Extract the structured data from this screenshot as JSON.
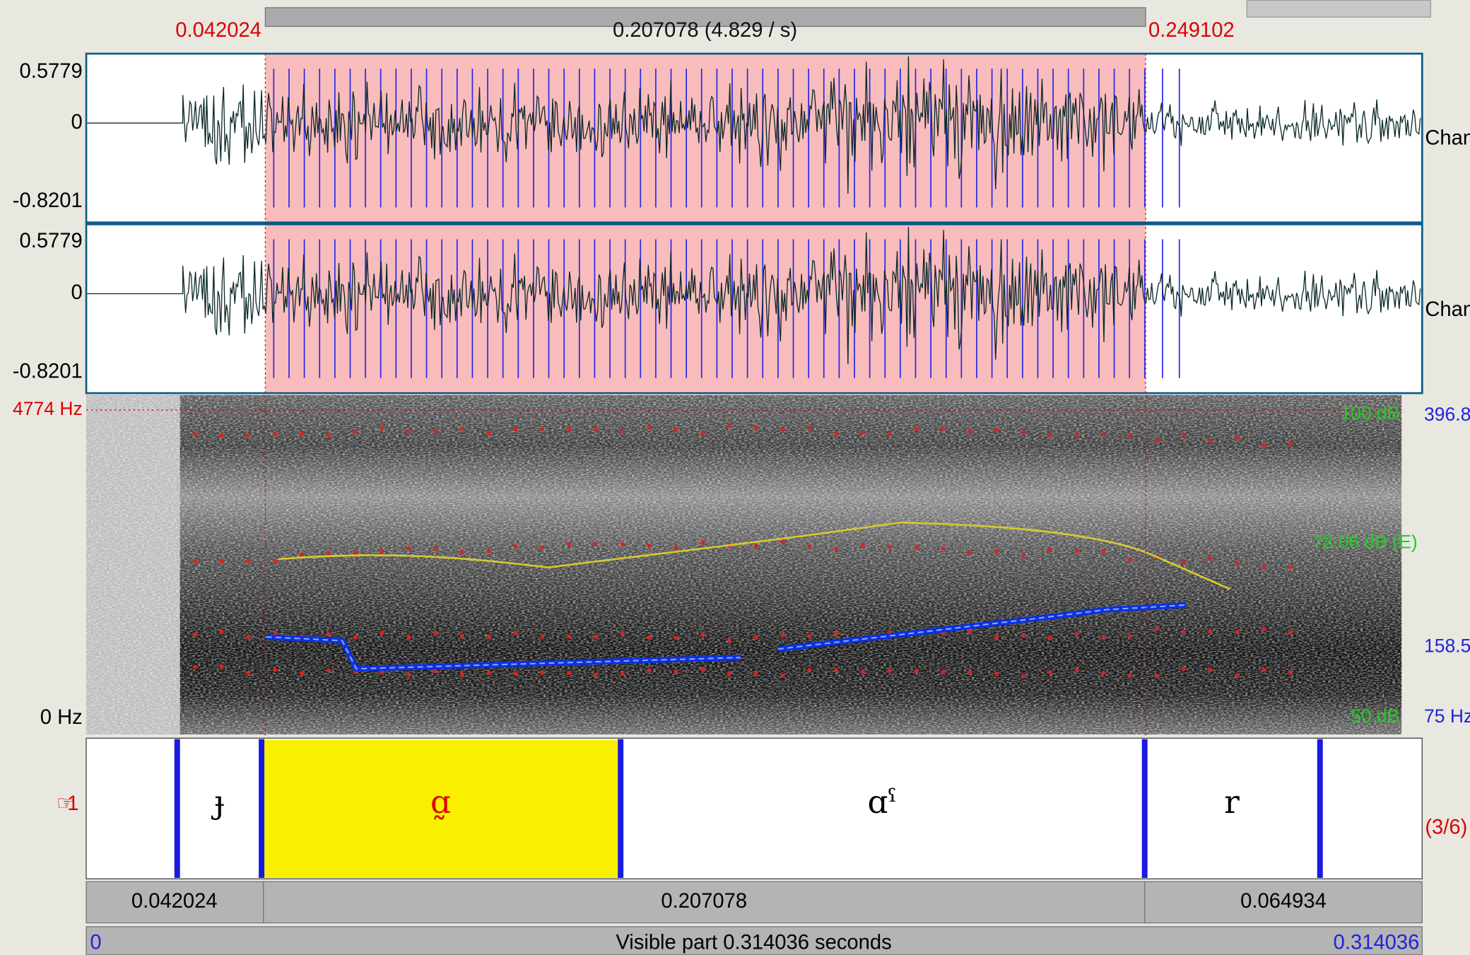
{
  "selection": {
    "start": "0.042024",
    "duration": "0.207078 (4.829 / s)",
    "end": "0.249102"
  },
  "waveform": {
    "channels": [
      {
        "max": "0.5779",
        "zero": "0",
        "min": "-0.8201",
        "name": "Chan"
      },
      {
        "max": "0.5779",
        "zero": "0",
        "min": "-0.8201",
        "name": "Chan"
      }
    ]
  },
  "spectrogram": {
    "top": "4774 Hz",
    "bottom": "0 Hz",
    "intensity_top": "100 dB",
    "intensity_mid": "78.06 dB (E)",
    "intensity_bottom": "50 dB",
    "pitch_top": "396.8",
    "pitch_mid": "158.5",
    "pitch_bottom": "75 Hz"
  },
  "tier": {
    "number": "1",
    "intervals": [
      "ɟ",
      "ɑ̰",
      "ɑˤ",
      "r"
    ],
    "count": "(3/6)"
  },
  "durations": [
    "0.042024",
    "0.207078",
    "0.064934"
  ],
  "visible": {
    "start": "0",
    "label": "Visible part 0.314036 seconds",
    "end": "0.314036"
  }
}
